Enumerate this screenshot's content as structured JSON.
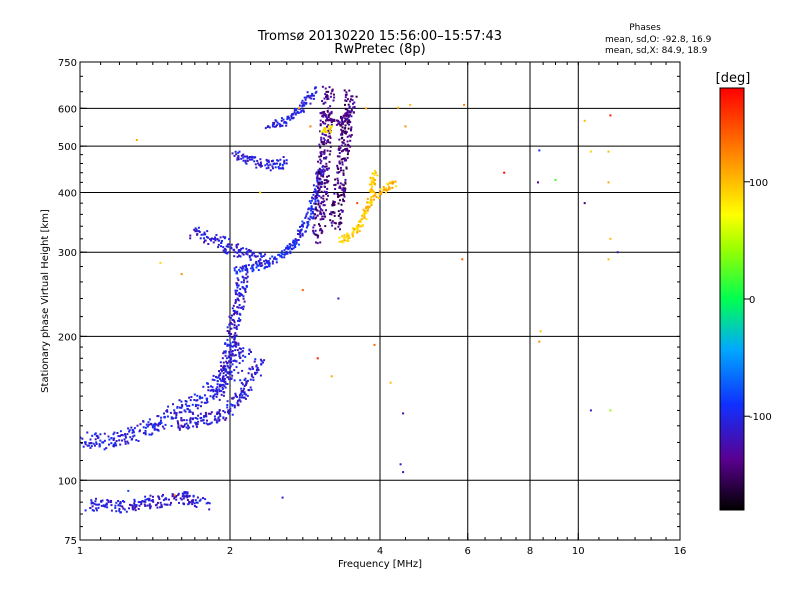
{
  "chart_data": {
    "type": "scatter",
    "title": "Tromsø 20130220 15:56:00–15:57:43",
    "subtitle": "RwPretec (8p)",
    "xlabel": "Frequency [MHz]",
    "ylabel": "Stationary phase Virtual Height [km]",
    "x_scale": "log",
    "y_scale": "log",
    "xlim": [
      1,
      16
    ],
    "ylim": [
      75,
      750
    ],
    "x_ticks": [
      1,
      2,
      4,
      6,
      8,
      10,
      16
    ],
    "x_tick_labels": [
      "1",
      "2",
      "4",
      "6",
      "8",
      "10",
      "16"
    ],
    "y_ticks": [
      75,
      100,
      200,
      300,
      400,
      500,
      600,
      750
    ],
    "y_tick_labels": [
      "75",
      "100",
      "200",
      "300",
      "400",
      "500",
      "600",
      "750"
    ],
    "x_gridlines": [
      2,
      4,
      6,
      8,
      10
    ],
    "y_gridlines": [
      100,
      200,
      300,
      400,
      500,
      600
    ],
    "grid": true,
    "colorbar": {
      "label": "[deg]",
      "range": [
        -180,
        180
      ],
      "ticks": [
        100,
        0,
        -100
      ],
      "tick_labels": [
        "100",
        "0",
        "-100"
      ]
    },
    "phases": {
      "heading": "Phases",
      "line1": "mean, sd,O:  -92.8, 16.9",
      "line2": "mean, sd,X:  84.9, 18.9"
    },
    "traces": [
      {
        "x": [
          1.0,
          1.1,
          1.25,
          1.4,
          1.55,
          1.7,
          1.85,
          1.95,
          2.05,
          2.15
        ],
        "y": [
          122,
          120,
          123,
          130,
          138,
          145,
          155,
          165,
          175,
          190
        ],
        "phase": -105,
        "spread": 8
      },
      {
        "x": [
          1.55,
          1.7,
          1.85,
          2.0,
          2.1,
          2.2,
          2.3
        ],
        "y": [
          130,
          133,
          135,
          140,
          150,
          165,
          175
        ],
        "phase": -110,
        "spread": 6
      },
      {
        "x": [
          1.9,
          1.95,
          2.0,
          2.02,
          2.05,
          2.08,
          2.1,
          2.12
        ],
        "y": [
          150,
          170,
          190,
          205,
          220,
          235,
          250,
          270
        ],
        "phase": -112,
        "spread": 6
      },
      {
        "x": [
          1.7,
          1.8,
          1.9,
          2.0,
          2.1,
          2.2,
          2.35
        ],
        "y": [
          330,
          322,
          315,
          305,
          300,
          295,
          290
        ],
        "phase": -108,
        "spread": 6
      },
      {
        "x": [
          2.05,
          2.2,
          2.4,
          2.6,
          2.8,
          2.95,
          3.05
        ],
        "y": [
          275,
          278,
          285,
          300,
          330,
          380,
          450
        ],
        "phase": -100,
        "spread": 4
      },
      {
        "x": [
          2.05,
          2.15,
          2.3,
          2.45,
          2.6
        ],
        "y": [
          480,
          470,
          460,
          455,
          465
        ],
        "phase": -108,
        "spread": 5
      },
      {
        "x": [
          2.4,
          2.55,
          2.7,
          2.85,
          2.95
        ],
        "y": [
          555,
          560,
          580,
          620,
          655
        ],
        "phase": -105,
        "spread": 4
      },
      {
        "x": [
          3.0,
          3.05,
          3.08,
          3.1,
          3.12,
          3.15
        ],
        "y": [
          320,
          380,
          440,
          500,
          570,
          650
        ],
        "phase": -140,
        "spread": 6
      },
      {
        "x": [
          3.25,
          3.3,
          3.35,
          3.4,
          3.45,
          3.5
        ],
        "y": [
          340,
          390,
          450,
          520,
          590,
          650
        ],
        "phase": -145,
        "spread": 6
      },
      {
        "x": [
          3.1,
          3.2,
          3.3,
          3.4,
          3.55
        ],
        "y": [
          590,
          560,
          560,
          570,
          600
        ],
        "phase": -138,
        "spread": 4
      },
      {
        "x": [
          3.3,
          3.4,
          3.55,
          3.7,
          3.8,
          3.9
        ],
        "y": [
          318,
          320,
          330,
          350,
          380,
          440
        ],
        "phase": 95,
        "spread": 3
      },
      {
        "x": [
          3.05,
          3.15,
          3.2
        ],
        "y": [
          540,
          540,
          548
        ],
        "phase": 85,
        "spread": 3
      },
      {
        "x": [
          3.9,
          4.0,
          4.15,
          4.3
        ],
        "y": [
          390,
          400,
          410,
          420
        ],
        "phase": 100,
        "spread": 3
      },
      {
        "x": [
          1.05,
          1.2,
          1.4,
          1.6,
          1.8
        ],
        "y": [
          89,
          88,
          90,
          92,
          89
        ],
        "phase": -110,
        "spread": 6
      }
    ],
    "points": [
      {
        "x": 1.25,
        "y": 95,
        "phase": -80
      },
      {
        "x": 1.55,
        "y": 93,
        "phase": 120
      },
      {
        "x": 1.3,
        "y": 515,
        "phase": 110
      },
      {
        "x": 1.45,
        "y": 285,
        "phase": 90
      },
      {
        "x": 1.6,
        "y": 270,
        "phase": 120
      },
      {
        "x": 2.3,
        "y": 400,
        "phase": 90
      },
      {
        "x": 2.8,
        "y": 250,
        "phase": 140
      },
      {
        "x": 2.9,
        "y": 550,
        "phase": 130
      },
      {
        "x": 2.75,
        "y": 600,
        "phase": 120
      },
      {
        "x": 3.0,
        "y": 180,
        "phase": 170
      },
      {
        "x": 3.2,
        "y": 165,
        "phase": 110
      },
      {
        "x": 3.3,
        "y": 240,
        "phase": -120
      },
      {
        "x": 3.6,
        "y": 380,
        "phase": 150
      },
      {
        "x": 3.75,
        "y": 600,
        "phase": 110
      },
      {
        "x": 3.9,
        "y": 192,
        "phase": 140
      },
      {
        "x": 4.35,
        "y": 602,
        "phase": 100
      },
      {
        "x": 4.5,
        "y": 550,
        "phase": 120
      },
      {
        "x": 4.6,
        "y": 610,
        "phase": 100
      },
      {
        "x": 4.45,
        "y": 138,
        "phase": -130
      },
      {
        "x": 4.4,
        "y": 108,
        "phase": -115
      },
      {
        "x": 4.45,
        "y": 104,
        "phase": -120
      },
      {
        "x": 4.2,
        "y": 160,
        "phase": 100
      },
      {
        "x": 5.9,
        "y": 610,
        "phase": 130
      },
      {
        "x": 5.85,
        "y": 290,
        "phase": 140
      },
      {
        "x": 7.1,
        "y": 440,
        "phase": 180
      },
      {
        "x": 8.35,
        "y": 490,
        "phase": -90
      },
      {
        "x": 8.3,
        "y": 420,
        "phase": -140
      },
      {
        "x": 8.4,
        "y": 205,
        "phase": 100
      },
      {
        "x": 8.35,
        "y": 195,
        "phase": 120
      },
      {
        "x": 9.0,
        "y": 425,
        "phase": 20
      },
      {
        "x": 10.3,
        "y": 380,
        "phase": -150
      },
      {
        "x": 10.3,
        "y": 565,
        "phase": 100
      },
      {
        "x": 10.6,
        "y": 487,
        "phase": 90
      },
      {
        "x": 10.6,
        "y": 140,
        "phase": -110
      },
      {
        "x": 11.6,
        "y": 580,
        "phase": 170
      },
      {
        "x": 11.5,
        "y": 487,
        "phase": 100
      },
      {
        "x": 11.5,
        "y": 420,
        "phase": 110
      },
      {
        "x": 11.6,
        "y": 320,
        "phase": 100
      },
      {
        "x": 11.5,
        "y": 290,
        "phase": 100
      },
      {
        "x": 12.0,
        "y": 300,
        "phase": -120
      },
      {
        "x": 11.6,
        "y": 140,
        "phase": 40
      },
      {
        "x": 2.55,
        "y": 92,
        "phase": -110
      }
    ]
  }
}
